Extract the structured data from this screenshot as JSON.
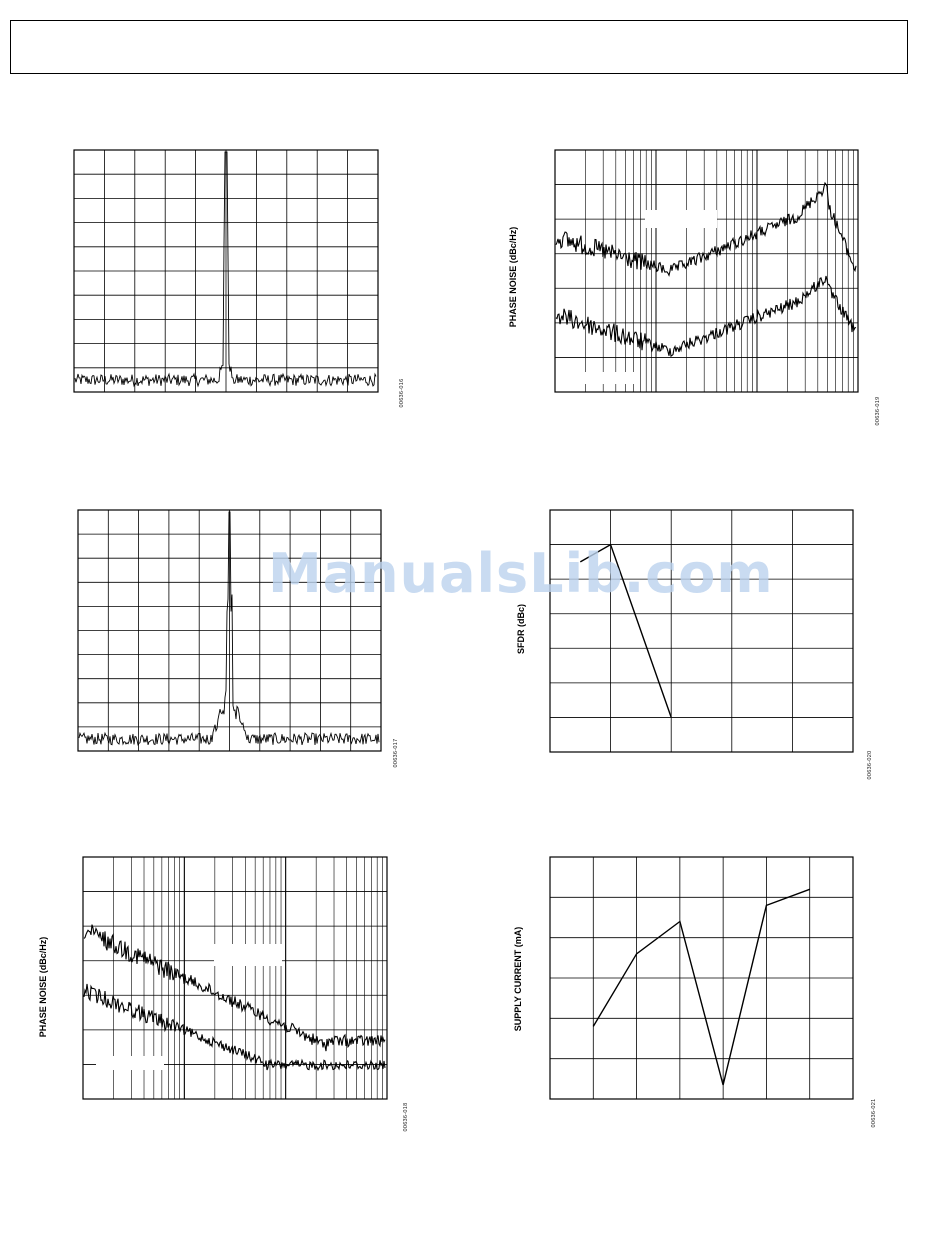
{
  "watermark": "ManualsLib.com",
  "chart_data": [
    {
      "type": "line",
      "description_series": "spectrum",
      "ylabel": "",
      "figure_code": "00636-016",
      "x_divisions": 10,
      "y_divisions": 10,
      "grid": true,
      "scale": "linear"
    },
    {
      "type": "line",
      "ylabel": "PHASE NOISE (dBc/Hz)",
      "figure_code": "00636-019",
      "x_decades": 3,
      "y_divisions": 7,
      "grid": true,
      "scale": "log-x",
      "series_count": 2
    },
    {
      "type": "line",
      "ylabel": "",
      "figure_code": "00636-017",
      "x_divisions": 10,
      "y_divisions": 10,
      "grid": true,
      "scale": "linear"
    },
    {
      "type": "line",
      "ylabel": "SFDR (dBc)",
      "figure_code": "00636-020",
      "x_divisions": 5,
      "y_divisions": 7,
      "grid": true,
      "points": [
        [
          0.5,
          5.5
        ],
        [
          1.0,
          6.0
        ],
        [
          2.0,
          1.0
        ]
      ]
    },
    {
      "type": "line",
      "ylabel": "PHASE NOISE (dBc/Hz)",
      "figure_code": "00636-018",
      "x_decades": 3,
      "y_divisions": 7,
      "grid": true,
      "scale": "log-x",
      "series_count": 2
    },
    {
      "type": "line",
      "ylabel": "SUPPLY CURRENT (mA)",
      "figure_code": "00636-021",
      "x_divisions": 7,
      "y_divisions": 6,
      "grid": true,
      "points": [
        [
          1,
          1.8
        ],
        [
          2,
          3.6
        ],
        [
          3,
          4.4
        ],
        [
          4,
          0.35
        ],
        [
          5,
          4.8
        ],
        [
          6,
          5.2
        ]
      ]
    }
  ]
}
